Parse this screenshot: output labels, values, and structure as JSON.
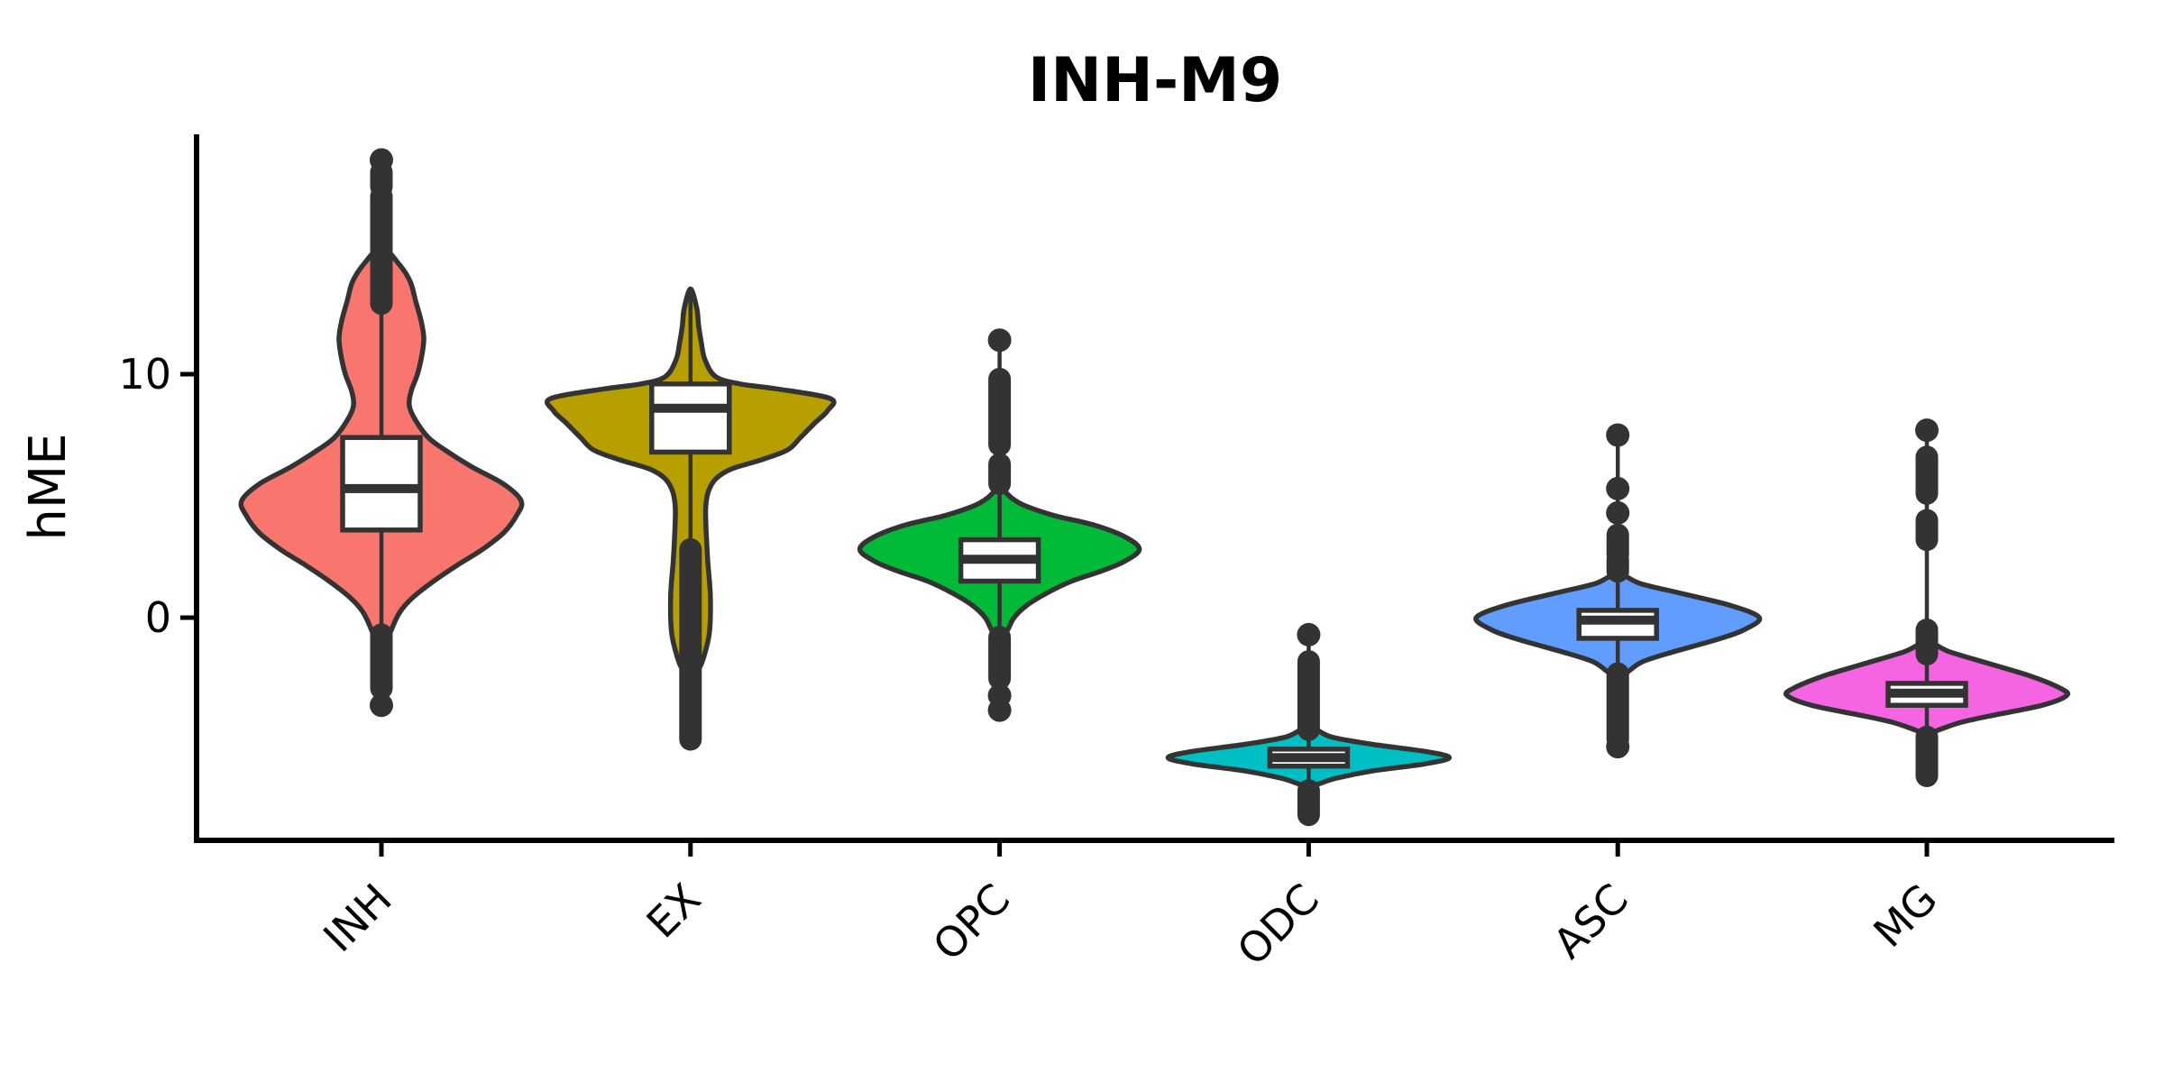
{
  "title": "INH-M9",
  "colors": {
    "stroke": "#333333",
    "axis": "#000000",
    "box_fill": "#ffffff",
    "background": "#ffffff"
  },
  "chart_data": {
    "type": "violin",
    "title": "INH-M9",
    "xlabel": "",
    "ylabel": "hME",
    "ylim": [
      -9.1,
      19.9
    ],
    "y_ticks": [
      10,
      0
    ],
    "grid": false,
    "legend": "none",
    "categories": [
      "INH",
      "EX",
      "OPC",
      "ODC",
      "ASC",
      "MG"
    ],
    "series": [
      {
        "name": "INH",
        "color": "#F8766D",
        "box": {
          "q1": 3.6,
          "median": 5.3,
          "q3": 7.4
        },
        "whisker": {
          "top": 18.8,
          "bottom": -3.6
        },
        "violin_profile": [
          [
            15.2,
            0
          ],
          [
            14.5,
            20
          ],
          [
            13.8,
            32
          ],
          [
            13.0,
            38
          ],
          [
            12.2,
            44
          ],
          [
            11.5,
            47
          ],
          [
            10.8,
            45
          ],
          [
            10.0,
            40
          ],
          [
            9.3,
            33
          ],
          [
            8.7,
            31
          ],
          [
            8.1,
            38
          ],
          [
            7.4,
            52
          ],
          [
            6.9,
            70
          ],
          [
            6.2,
            100
          ],
          [
            5.5,
            135
          ],
          [
            4.8,
            155
          ],
          [
            4.2,
            150
          ],
          [
            3.5,
            136
          ],
          [
            2.8,
            112
          ],
          [
            2.2,
            86
          ],
          [
            1.5,
            58
          ],
          [
            0.8,
            34
          ],
          [
            0.2,
            20
          ],
          [
            -0.6,
            10
          ],
          [
            -1.2,
            5
          ],
          [
            -1.7,
            0
          ]
        ],
        "outlier_columns": [
          [
            18.3,
            17.7
          ],
          [
            17.3,
            12.9
          ],
          [
            -0.7,
            -2.9
          ]
        ],
        "outlier_dots": [
          18.8,
          -3.6
        ]
      },
      {
        "name": "EX",
        "color": "#B79F00",
        "box": {
          "q1": 6.8,
          "median": 8.6,
          "q3": 9.6
        },
        "whisker": {
          "top": 13.4,
          "bottom": -5.0
        },
        "violin_profile": [
          [
            13.5,
            0
          ],
          [
            12.7,
            7
          ],
          [
            12.0,
            9
          ],
          [
            11.3,
            12
          ],
          [
            10.6,
            16
          ],
          [
            9.9,
            28
          ],
          [
            9.6,
            55
          ],
          [
            9.4,
            95
          ],
          [
            9.0,
            155
          ],
          [
            8.5,
            152
          ],
          [
            8.0,
            138
          ],
          [
            7.4,
            122
          ],
          [
            6.9,
            108
          ],
          [
            6.5,
            80
          ],
          [
            6.1,
            45
          ],
          [
            5.7,
            28
          ],
          [
            5.2,
            20
          ],
          [
            4.6,
            17
          ],
          [
            3.9,
            17
          ],
          [
            2.4,
            19
          ],
          [
            0.9,
            22
          ],
          [
            -0.6,
            21
          ],
          [
            -1.7,
            14
          ],
          [
            -2.2,
            8
          ],
          [
            -2.7,
            0
          ]
        ],
        "outlier_columns": [
          [
            2.8,
            -5.0
          ]
        ],
        "outlier_dots": []
      },
      {
        "name": "OPC",
        "color": "#00BA38",
        "box": {
          "q1": 1.5,
          "median": 2.4,
          "q3": 3.2
        },
        "whisker": {
          "top": 11.4,
          "bottom": -3.8
        },
        "violin_profile": [
          [
            5.3,
            0
          ],
          [
            4.9,
            14
          ],
          [
            4.6,
            28
          ],
          [
            4.2,
            60
          ],
          [
            3.8,
            105
          ],
          [
            3.3,
            140
          ],
          [
            2.8,
            155
          ],
          [
            2.3,
            138
          ],
          [
            1.9,
            112
          ],
          [
            1.5,
            80
          ],
          [
            1.0,
            52
          ],
          [
            0.5,
            30
          ],
          [
            0.0,
            16
          ],
          [
            -0.5,
            9
          ],
          [
            -1.0,
            0
          ]
        ],
        "outlier_columns": [
          [
            9.8,
            7.1
          ],
          [
            6.3,
            5.5
          ],
          [
            -0.8,
            -2.5
          ]
        ],
        "outlier_dots": [
          11.4,
          -3.2,
          -3.8
        ]
      },
      {
        "name": "ODC",
        "color": "#00BFC4",
        "box": {
          "q1": -6.1,
          "median": -5.75,
          "q3": -5.4
        },
        "whisker": {
          "top": -0.7,
          "bottom": -8.1
        },
        "violin_profile": [
          [
            -4.5,
            0
          ],
          [
            -4.9,
            25
          ],
          [
            -5.2,
            70
          ],
          [
            -5.5,
            130
          ],
          [
            -5.75,
            156
          ],
          [
            -6.0,
            130
          ],
          [
            -6.3,
            70
          ],
          [
            -6.6,
            30
          ],
          [
            -6.9,
            0
          ]
        ],
        "outlier_columns": [
          [
            -1.8,
            -4.6
          ],
          [
            -7.1,
            -8.1
          ]
        ],
        "outlier_dots": [
          -0.7
        ]
      },
      {
        "name": "ASC",
        "color": "#619CFF",
        "box": {
          "q1": -0.85,
          "median": -0.1,
          "q3": 0.3
        },
        "whisker": {
          "top": 7.5,
          "bottom": -5.3
        },
        "violin_profile": [
          [
            1.8,
            0
          ],
          [
            1.4,
            25
          ],
          [
            1.0,
            70
          ],
          [
            0.5,
            125
          ],
          [
            0.0,
            157
          ],
          [
            -0.5,
            140
          ],
          [
            -0.9,
            110
          ],
          [
            -1.4,
            62
          ],
          [
            -1.8,
            28
          ],
          [
            -2.2,
            12
          ],
          [
            -2.5,
            0
          ]
        ],
        "outlier_columns": [
          [
            3.4,
            2.6
          ],
          [
            2.4,
            1.9
          ],
          [
            -2.3,
            -5.0
          ]
        ],
        "outlier_dots": [
          7.5,
          5.3,
          4.3,
          -5.3
        ]
      },
      {
        "name": "MG",
        "color": "#F564E3",
        "box": {
          "q1": -3.6,
          "median": -3.1,
          "q3": -2.7
        },
        "whisker": {
          "top": 7.7,
          "bottom": -6.5
        },
        "violin_profile": [
          [
            -1.0,
            0
          ],
          [
            -1.4,
            25
          ],
          [
            -1.9,
            70
          ],
          [
            -2.4,
            115
          ],
          [
            -2.9,
            148
          ],
          [
            -3.2,
            155
          ],
          [
            -3.6,
            128
          ],
          [
            -4.0,
            75
          ],
          [
            -4.3,
            38
          ],
          [
            -4.6,
            14
          ],
          [
            -4.8,
            0
          ]
        ],
        "outlier_columns": [
          [
            6.6,
            5.1
          ],
          [
            4.0,
            3.2
          ],
          [
            -0.5,
            -1.5
          ],
          [
            -4.9,
            -6.5
          ]
        ],
        "outlier_dots": [
          7.7
        ]
      }
    ]
  }
}
